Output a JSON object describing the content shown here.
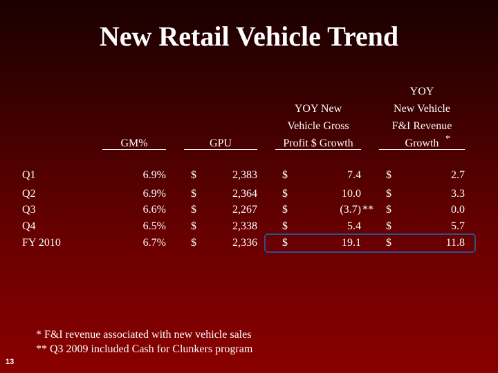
{
  "title": "New Retail Vehicle Trend",
  "headers": {
    "gm": "GM%",
    "gpu": "GPU",
    "yoy_gross": [
      "YOY New",
      "Vehicle Gross",
      "Profit $ Growth"
    ],
    "yoy_fi": [
      "YOY",
      "New Vehicle",
      "F&I Revenue",
      "Growth"
    ],
    "yoy_fi_marker": "*"
  },
  "rows": [
    {
      "label": "Q1",
      "gm": "6.9%",
      "gpu_cur": "$",
      "gpu": "2,383",
      "gross_cur": "$",
      "gross": "7.4",
      "gross_note": "",
      "fi_cur": "$",
      "fi": "2.7"
    },
    {
      "label": "Q2",
      "gm": "6.9%",
      "gpu_cur": "$",
      "gpu": "2,364",
      "gross_cur": "$",
      "gross": "10.0",
      "gross_note": "",
      "fi_cur": "$",
      "fi": "3.3"
    },
    {
      "label": "Q3",
      "gm": "6.6%",
      "gpu_cur": "$",
      "gpu": "2,267",
      "gross_cur": "$",
      "gross": "(3.7)",
      "gross_note": "**",
      "fi_cur": "$",
      "fi": "0.0"
    },
    {
      "label": "Q4",
      "gm": "6.5%",
      "gpu_cur": "$",
      "gpu": "2,338",
      "gross_cur": "$",
      "gross": "5.4",
      "gross_note": "",
      "fi_cur": "$",
      "fi": "5.7"
    },
    {
      "label": "FY 2010",
      "gm": "6.7%",
      "gpu_cur": "$",
      "gpu": "2,336",
      "gross_cur": "$",
      "gross": "19.1",
      "gross_note": "",
      "fi_cur": "$",
      "fi": "11.8"
    }
  ],
  "footnotes": [
    "*   F&I revenue associated with new vehicle sales",
    "** Q3 2009 included Cash for Clunkers program"
  ],
  "page_number": "13"
}
